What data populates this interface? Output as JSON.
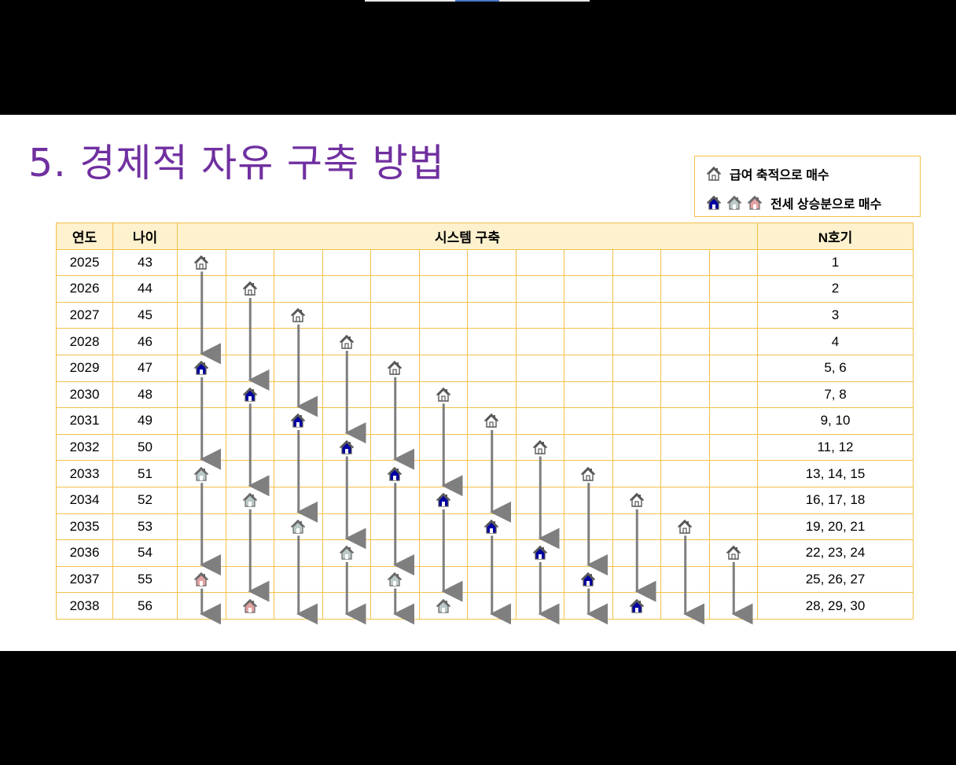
{
  "title": "5. 경제적 자유 구축 방법",
  "legend": {
    "salary_label": "급여 축적으로 매수",
    "jeonse_label": "전세 상승분으로 매수"
  },
  "table": {
    "headers": {
      "year": "연도",
      "age": "나이",
      "system": "시스템 구축",
      "count": "N호기"
    },
    "rows": [
      {
        "year": "2025",
        "age": "43",
        "count": "1"
      },
      {
        "year": "2026",
        "age": "44",
        "count": "2"
      },
      {
        "year": "2027",
        "age": "45",
        "count": "3"
      },
      {
        "year": "2028",
        "age": "46",
        "count": "4"
      },
      {
        "year": "2029",
        "age": "47",
        "count": "5, 6"
      },
      {
        "year": "2030",
        "age": "48",
        "count": "7, 8"
      },
      {
        "year": "2031",
        "age": "49",
        "count": "9, 10"
      },
      {
        "year": "2032",
        "age": "50",
        "count": "11, 12"
      },
      {
        "year": "2033",
        "age": "51",
        "count": "13, 14, 15"
      },
      {
        "year": "2034",
        "age": "52",
        "count": "16, 17, 18"
      },
      {
        "year": "2035",
        "age": "53",
        "count": "19, 20, 21"
      },
      {
        "year": "2036",
        "age": "54",
        "count": "22, 23, 24"
      },
      {
        "year": "2037",
        "age": "55",
        "count": "25, 26, 27"
      },
      {
        "year": "2038",
        "age": "56",
        "count": "28, 29, 30"
      }
    ],
    "houses": [
      {
        "col": 1,
        "row": 0,
        "kind": "salary"
      },
      {
        "col": 2,
        "row": 1,
        "kind": "salary"
      },
      {
        "col": 3,
        "row": 2,
        "kind": "salary"
      },
      {
        "col": 4,
        "row": 3,
        "kind": "salary"
      },
      {
        "col": 5,
        "row": 4,
        "kind": "salary"
      },
      {
        "col": 6,
        "row": 5,
        "kind": "salary"
      },
      {
        "col": 7,
        "row": 6,
        "kind": "salary"
      },
      {
        "col": 8,
        "row": 7,
        "kind": "salary"
      },
      {
        "col": 9,
        "row": 8,
        "kind": "salary"
      },
      {
        "col": 10,
        "row": 9,
        "kind": "salary"
      },
      {
        "col": 11,
        "row": 10,
        "kind": "salary"
      },
      {
        "col": 12,
        "row": 11,
        "kind": "salary"
      },
      {
        "col": 1,
        "row": 4,
        "kind": "jeonse-blue"
      },
      {
        "col": 2,
        "row": 5,
        "kind": "jeonse-blue"
      },
      {
        "col": 3,
        "row": 6,
        "kind": "jeonse-blue"
      },
      {
        "col": 4,
        "row": 7,
        "kind": "jeonse-blue"
      },
      {
        "col": 5,
        "row": 8,
        "kind": "jeonse-blue"
      },
      {
        "col": 6,
        "row": 9,
        "kind": "jeonse-blue"
      },
      {
        "col": 7,
        "row": 10,
        "kind": "jeonse-blue"
      },
      {
        "col": 8,
        "row": 11,
        "kind": "jeonse-blue"
      },
      {
        "col": 9,
        "row": 12,
        "kind": "jeonse-blue"
      },
      {
        "col": 10,
        "row": 13,
        "kind": "jeonse-blue"
      },
      {
        "col": 1,
        "row": 8,
        "kind": "jeonse-teal"
      },
      {
        "col": 2,
        "row": 9,
        "kind": "jeonse-teal"
      },
      {
        "col": 3,
        "row": 10,
        "kind": "jeonse-teal"
      },
      {
        "col": 4,
        "row": 11,
        "kind": "jeonse-teal"
      },
      {
        "col": 5,
        "row": 12,
        "kind": "jeonse-teal"
      },
      {
        "col": 6,
        "row": 13,
        "kind": "jeonse-teal"
      },
      {
        "col": 1,
        "row": 12,
        "kind": "jeonse-pink"
      },
      {
        "col": 2,
        "row": 13,
        "kind": "jeonse-pink"
      }
    ]
  },
  "colors": {
    "title": "#7030a0",
    "border": "#f5c04a",
    "header_bg": "#fdf1ce",
    "arrow": "#7f7f7f",
    "house_blue": "#0000a0",
    "house_teal": "#bcc9c9",
    "house_pink": "#e3a1a1"
  }
}
